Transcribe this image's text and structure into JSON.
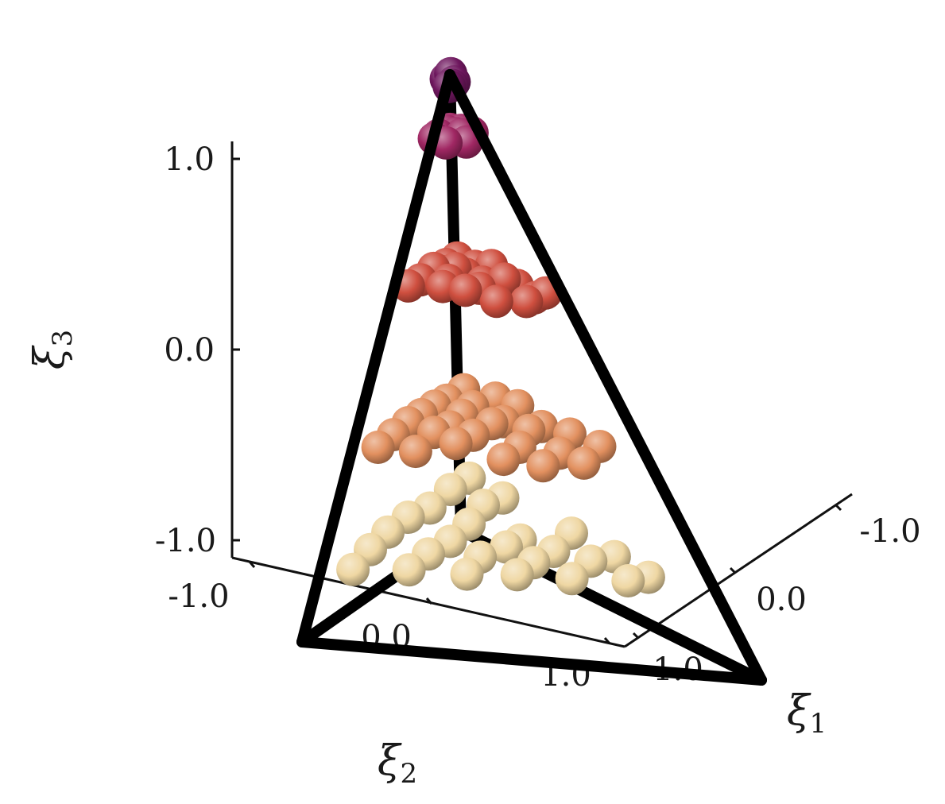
{
  "chart_data": {
    "type": "scatter",
    "subtype": "3d-scatter-tetrahedron",
    "title": "",
    "axes": {
      "xi1": {
        "label": "ξ",
        "sub": "1",
        "ticks": [
          "-1.0",
          "0.0",
          "1.0"
        ]
      },
      "xi2": {
        "label": "ξ",
        "sub": "2",
        "ticks": [
          "-1.0",
          "0.0",
          "1.0"
        ]
      },
      "xi3": {
        "label": "ξ",
        "sub": "3",
        "ticks": [
          "1.0",
          "0.0",
          "-1.0"
        ]
      }
    },
    "tetrahedron_vertices": [
      [
        -1,
        -1,
        -1
      ],
      [
        -1,
        1,
        -1
      ],
      [
        1,
        -1,
        -1
      ],
      [
        -1,
        -1,
        1
      ]
    ],
    "point_layers": [
      {
        "xi3": -0.72,
        "color": "#efd7a3",
        "count": 26
      },
      {
        "xi3": -0.3,
        "color": "#e2905f",
        "count": 27
      },
      {
        "xi3": 0.25,
        "color": "#cf4f3f",
        "count": 21
      },
      {
        "xi3": 0.78,
        "color": "#a02763",
        "count": 13
      },
      {
        "xi3": 0.98,
        "color": "#6e175e",
        "count": 5
      }
    ],
    "grid": false,
    "legend": "none"
  }
}
